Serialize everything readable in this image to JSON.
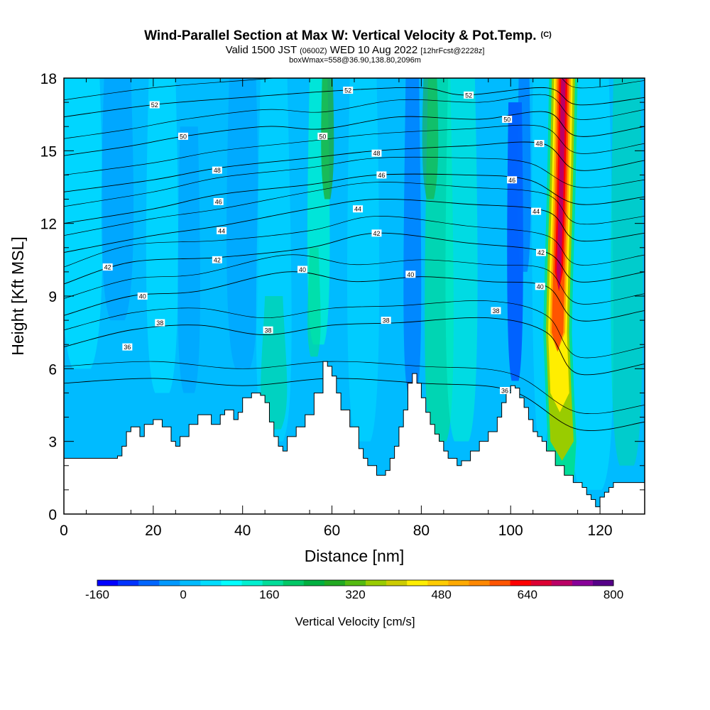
{
  "chart_data": {
    "type": "heatmap",
    "title": {
      "main": "Wind-Parallel Section at Max W: Vertical Velocity & Pot.Temp.",
      "copyright": "(C)",
      "valid_prefix": "Valid 1500 JST",
      "valid_utc": "(0600Z)",
      "valid_date": "WED 10 Aug 2022",
      "forecast": "[12hrFcst@2228z]",
      "box": "boxWmax=558@36.90,138.80,2096m"
    },
    "xlabel": "Distance [nm]",
    "ylabel": "Height [Kft MSL]",
    "xlim": [
      0,
      130
    ],
    "ylim": [
      0,
      18
    ],
    "x_ticks": [
      "0",
      "20",
      "40",
      "60",
      "80",
      "100",
      "120"
    ],
    "y_ticks": [
      "0",
      "3",
      "6",
      "9",
      "12",
      "15",
      "18"
    ],
    "colorbar": {
      "label": "Vertical Velocity [cm/s]",
      "range": [
        -160,
        800
      ],
      "tick_labels": [
        "-160",
        "0",
        "160",
        "320",
        "480",
        "640",
        "800"
      ],
      "colors": [
        "#0000ff",
        "#0033ff",
        "#0066ff",
        "#0099ff",
        "#00bbff",
        "#00ddff",
        "#00ffff",
        "#00f0d0",
        "#00dd99",
        "#00c866",
        "#00b040",
        "#22aa22",
        "#55bb11",
        "#99cc00",
        "#cccc00",
        "#ffee00",
        "#ffcc00",
        "#ffaa00",
        "#ff8800",
        "#ff5500",
        "#ff0000",
        "#dd0033",
        "#bb0066",
        "#880099",
        "#550088"
      ]
    },
    "terrain_height_kft": [
      [
        0,
        2.3
      ],
      [
        5,
        2.3
      ],
      [
        10,
        2.3
      ],
      [
        12,
        2.4
      ],
      [
        13,
        2.8
      ],
      [
        14,
        3.4
      ],
      [
        15,
        3.6
      ],
      [
        17,
        3.2
      ],
      [
        18,
        3.7
      ],
      [
        20,
        3.9
      ],
      [
        22,
        3.6
      ],
      [
        24,
        3.0
      ],
      [
        25,
        2.8
      ],
      [
        26,
        3.2
      ],
      [
        28,
        3.7
      ],
      [
        30,
        4.1
      ],
      [
        32,
        4.1
      ],
      [
        33,
        3.7
      ],
      [
        35,
        4.1
      ],
      [
        36,
        4.3
      ],
      [
        38,
        3.9
      ],
      [
        39,
        4.2
      ],
      [
        40,
        4.8
      ],
      [
        42,
        5.0
      ],
      [
        44,
        4.9
      ],
      [
        45,
        4.6
      ],
      [
        46,
        3.8
      ],
      [
        47,
        3.2
      ],
      [
        48,
        2.8
      ],
      [
        49,
        2.6
      ],
      [
        50,
        3.2
      ],
      [
        52,
        3.6
      ],
      [
        54,
        4.1
      ],
      [
        56,
        5.0
      ],
      [
        58,
        6.3
      ],
      [
        59,
        6.1
      ],
      [
        60,
        5.7
      ],
      [
        61,
        5.0
      ],
      [
        62,
        4.3
      ],
      [
        64,
        3.6
      ],
      [
        66,
        2.7
      ],
      [
        67,
        2.3
      ],
      [
        68,
        2.0
      ],
      [
        70,
        1.6
      ],
      [
        72,
        1.8
      ],
      [
        73,
        2.3
      ],
      [
        74,
        2.8
      ],
      [
        75,
        3.6
      ],
      [
        76,
        4.3
      ],
      [
        77,
        5.4
      ],
      [
        78,
        5.8
      ],
      [
        79,
        5.4
      ],
      [
        80,
        4.8
      ],
      [
        81,
        4.2
      ],
      [
        82,
        3.7
      ],
      [
        83,
        3.3
      ],
      [
        84,
        3.0
      ],
      [
        85,
        2.6
      ],
      [
        86,
        2.3
      ],
      [
        88,
        2.0
      ],
      [
        89,
        2.2
      ],
      [
        91,
        2.6
      ],
      [
        93,
        3.0
      ],
      [
        95,
        3.4
      ],
      [
        97,
        4.0
      ],
      [
        98,
        4.6
      ],
      [
        99,
        5.0
      ],
      [
        100,
        5.3
      ],
      [
        101,
        5.2
      ],
      [
        102,
        4.8
      ],
      [
        103,
        4.4
      ],
      [
        104,
        3.9
      ],
      [
        105,
        3.4
      ],
      [
        106,
        3.2
      ],
      [
        107,
        3.0
      ],
      [
        108,
        2.6
      ],
      [
        110,
        2.0
      ],
      [
        112,
        1.6
      ],
      [
        114,
        1.3
      ],
      [
        116,
        1.1
      ],
      [
        117,
        0.8
      ],
      [
        118,
        0.6
      ],
      [
        119,
        0.3
      ],
      [
        120,
        0.7
      ],
      [
        121,
        0.9
      ],
      [
        122,
        1.1
      ],
      [
        123,
        1.3
      ],
      [
        125,
        1.3
      ],
      [
        128,
        1.3
      ],
      [
        130,
        1.3
      ]
    ],
    "updraft_core": {
      "x_center_nm": 112,
      "peak_cm_s": 558,
      "levels": [
        {
          "y": 1.5,
          "x": 111.0
        },
        {
          "y": 3.0,
          "x": 111.5
        },
        {
          "y": 5.0,
          "x": 111.0
        },
        {
          "y": 7.5,
          "x": 110.5
        },
        {
          "y": 10.0,
          "x": 110.8
        },
        {
          "y": 12.5,
          "x": 111.2
        },
        {
          "y": 15.0,
          "x": 111.5
        },
        {
          "y": 18.0,
          "x": 111.8
        }
      ]
    },
    "theta_contours": [
      {
        "level": 36,
        "pts": [
          [
            0,
            5.4
          ],
          [
            20,
            5.6
          ],
          [
            40,
            5.3
          ],
          [
            60,
            5.6
          ],
          [
            80,
            5.4
          ],
          [
            100,
            5.1
          ],
          [
            115,
            3.5
          ],
          [
            130,
            3.8
          ]
        ]
      },
      {
        "level": 38,
        "pts": [
          [
            0,
            6.9
          ],
          [
            15,
            7.6
          ],
          [
            30,
            7.8
          ],
          [
            45,
            7.4
          ],
          [
            60,
            7.8
          ],
          [
            75,
            7.9
          ],
          [
            95,
            8.1
          ],
          [
            108,
            7.5
          ],
          [
            115,
            5.8
          ],
          [
            130,
            6.2
          ]
        ]
      },
      {
        "level": 40,
        "pts": [
          [
            0,
            8.2
          ],
          [
            15,
            9.0
          ],
          [
            30,
            9.2
          ],
          [
            50,
            10.0
          ],
          [
            65,
            9.6
          ],
          [
            80,
            9.8
          ],
          [
            95,
            9.6
          ],
          [
            108,
            9.4
          ],
          [
            115,
            8.0
          ],
          [
            130,
            8.4
          ]
        ]
      },
      {
        "level": 42,
        "pts": [
          [
            0,
            9.5
          ],
          [
            15,
            10.4
          ],
          [
            35,
            10.6
          ],
          [
            55,
            11.0
          ],
          [
            70,
            11.6
          ],
          [
            90,
            11.2
          ],
          [
            108,
            10.8
          ],
          [
            115,
            9.6
          ],
          [
            130,
            10.0
          ]
        ]
      },
      {
        "level": 44,
        "pts": [
          [
            0,
            10.8
          ],
          [
            20,
            11.5
          ],
          [
            35,
            11.9
          ],
          [
            55,
            12.6
          ],
          [
            70,
            13.0
          ],
          [
            90,
            12.8
          ],
          [
            108,
            12.5
          ],
          [
            115,
            11.3
          ],
          [
            130,
            11.6
          ]
        ]
      },
      {
        "level": 46,
        "pts": [
          [
            0,
            12.0
          ],
          [
            20,
            12.6
          ],
          [
            35,
            13.2
          ],
          [
            55,
            13.6
          ],
          [
            70,
            14.0
          ],
          [
            90,
            14.0
          ],
          [
            104,
            13.8
          ],
          [
            115,
            12.8
          ],
          [
            130,
            13.1
          ]
        ]
      },
      {
        "level": 48,
        "pts": [
          [
            0,
            13.3
          ],
          [
            20,
            13.8
          ],
          [
            35,
            14.3
          ],
          [
            55,
            14.7
          ],
          [
            70,
            15.0
          ],
          [
            90,
            15.2
          ],
          [
            107,
            15.3
          ],
          [
            115,
            14.2
          ],
          [
            130,
            14.6
          ]
        ]
      },
      {
        "level": 50,
        "pts": [
          [
            0,
            14.8
          ],
          [
            15,
            15.2
          ],
          [
            27,
            15.6
          ],
          [
            45,
            16.0
          ],
          [
            58,
            15.9
          ],
          [
            75,
            16.4
          ],
          [
            93,
            16.3
          ],
          [
            108,
            16.6
          ],
          [
            115,
            15.6
          ],
          [
            130,
            16.0
          ]
        ]
      },
      {
        "level": 52,
        "pts": [
          [
            0,
            16.4
          ],
          [
            20,
            16.9
          ],
          [
            40,
            17.2
          ],
          [
            63,
            17.5
          ],
          [
            80,
            17.6
          ],
          [
            90,
            17.3
          ],
          [
            108,
            17.6
          ],
          [
            115,
            16.9
          ],
          [
            130,
            17.2
          ]
        ]
      }
    ],
    "contour_labels": [
      {
        "text": "52",
        "x": 20.3,
        "y": 16.9
      },
      {
        "text": "50",
        "x": 26.7,
        "y": 15.6
      },
      {
        "text": "48",
        "x": 34.3,
        "y": 14.2
      },
      {
        "text": "46",
        "x": 34.6,
        "y": 12.9
      },
      {
        "text": "44",
        "x": 35.3,
        "y": 11.7
      },
      {
        "text": "42",
        "x": 34.3,
        "y": 10.5
      },
      {
        "text": "42",
        "x": 9.8,
        "y": 10.2
      },
      {
        "text": "40",
        "x": 17.6,
        "y": 9.0
      },
      {
        "text": "38",
        "x": 21.5,
        "y": 7.9
      },
      {
        "text": "36",
        "x": 14.2,
        "y": 6.9
      },
      {
        "text": "52",
        "x": 63.6,
        "y": 17.5
      },
      {
        "text": "50",
        "x": 57.9,
        "y": 15.6
      },
      {
        "text": "48",
        "x": 70.0,
        "y": 14.9
      },
      {
        "text": "46",
        "x": 71.1,
        "y": 14.0
      },
      {
        "text": "44",
        "x": 65.8,
        "y": 12.6
      },
      {
        "text": "42",
        "x": 70.0,
        "y": 11.6
      },
      {
        "text": "40",
        "x": 53.4,
        "y": 10.1
      },
      {
        "text": "40",
        "x": 77.6,
        "y": 9.9
      },
      {
        "text": "38",
        "x": 45.7,
        "y": 7.6
      },
      {
        "text": "38",
        "x": 72.1,
        "y": 8.0
      },
      {
        "text": "38",
        "x": 96.7,
        "y": 8.4
      },
      {
        "text": "52",
        "x": 90.6,
        "y": 17.3
      },
      {
        "text": "50",
        "x": 99.2,
        "y": 16.3
      },
      {
        "text": "48",
        "x": 106.4,
        "y": 15.3
      },
      {
        "text": "46",
        "x": 100.3,
        "y": 13.8
      },
      {
        "text": "44",
        "x": 105.7,
        "y": 12.5
      },
      {
        "text": "42",
        "x": 106.8,
        "y": 10.8
      },
      {
        "text": "40",
        "x": 106.6,
        "y": 9.4
      },
      {
        "text": "36",
        "x": 98.7,
        "y": 5.1
      }
    ]
  }
}
